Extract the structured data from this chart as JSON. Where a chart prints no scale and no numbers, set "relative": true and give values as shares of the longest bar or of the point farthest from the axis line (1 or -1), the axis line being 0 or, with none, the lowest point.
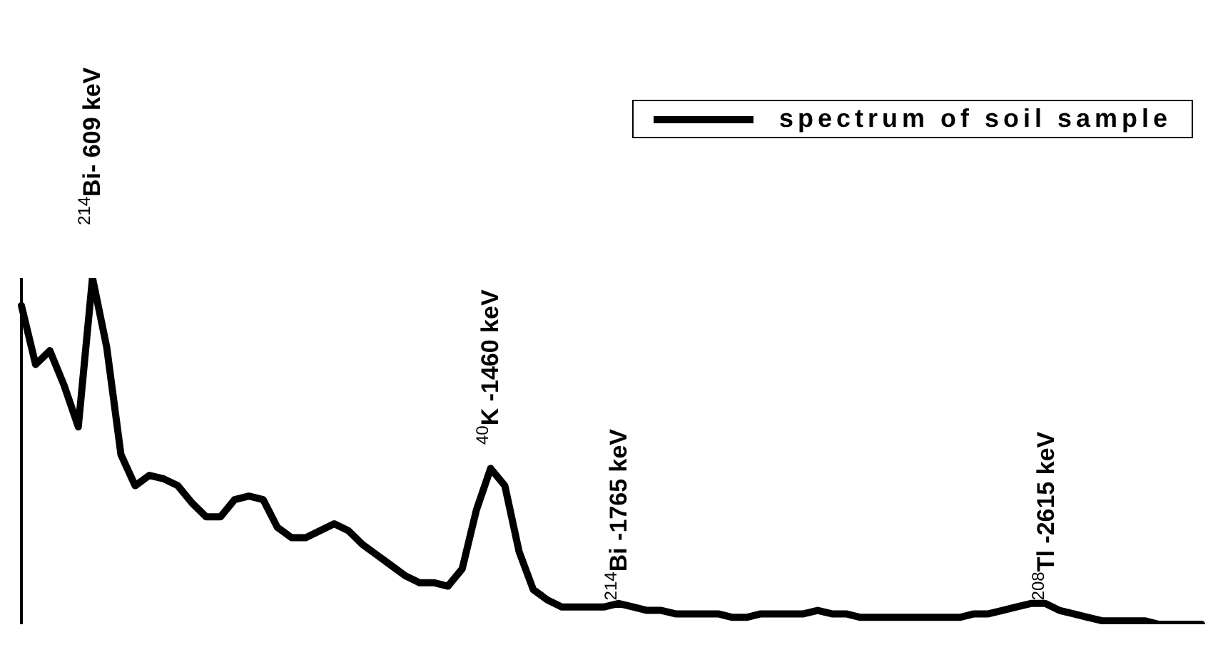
{
  "chart_data": {
    "type": "line",
    "relative": true,
    "legend": "top right",
    "marker": "none",
    "line_style": "solid",
    "categories": [
      null,
      null,
      null,
      null,
      null,
      null,
      null,
      null,
      null,
      null,
      null,
      null,
      null,
      null,
      null,
      null,
      null,
      null,
      null,
      null,
      null,
      null,
      null,
      null,
      null,
      null,
      null,
      null,
      null,
      null,
      null,
      null,
      null,
      null,
      null,
      null,
      null,
      null,
      null,
      null,
      null,
      null,
      null,
      null,
      null,
      null,
      null,
      null,
      null,
      null,
      null,
      null,
      null,
      null,
      null,
      null,
      null,
      null,
      null,
      null,
      null,
      null,
      null,
      null,
      null,
      null,
      null,
      null,
      null,
      null,
      null,
      null,
      null,
      null,
      null,
      null,
      null,
      null,
      null,
      null,
      null,
      null,
      null,
      null
    ],
    "series": [
      {
        "name": "spectrum of soil sample",
        "color": "#000000",
        "values": [
          0.92,
          0.75,
          0.79,
          0.69,
          0.57,
          1,
          0.8,
          0.49,
          0.4,
          0.43,
          0.42,
          0.4,
          0.35,
          0.31,
          0.31,
          0.36,
          0.37,
          0.36,
          0.28,
          0.25,
          0.25,
          0.27,
          0.29,
          0.27,
          0.23,
          0.2,
          0.17,
          0.14,
          0.12,
          0.12,
          0.11,
          0.16,
          0.33,
          0.45,
          0.4,
          0.21,
          0.1,
          0.07,
          0.05,
          0.05,
          0.05,
          0.05,
          0.06,
          0.05,
          0.04,
          0.04,
          0.03,
          0.03,
          0.03,
          0.03,
          0.02,
          0.02,
          0.03,
          0.03,
          0.03,
          0.03,
          0.04,
          0.03,
          0.03,
          0.02,
          0.02,
          0.02,
          0.02,
          0.02,
          0.02,
          0.02,
          0.02,
          0.03,
          0.03,
          0.04,
          0.05,
          0.06,
          0.06,
          0.04,
          0.03,
          0.02,
          0.01,
          0.01,
          0.01,
          0.01,
          0,
          0,
          0,
          0
        ]
      }
    ],
    "annotations": [
      "$^{214}$Bi- 609 keV",
      "$^{40}$K -1460 keV",
      "$^{214}$Bi -1765 keV",
      "$^{208}$Tl -2615 keV"
    ]
  }
}
